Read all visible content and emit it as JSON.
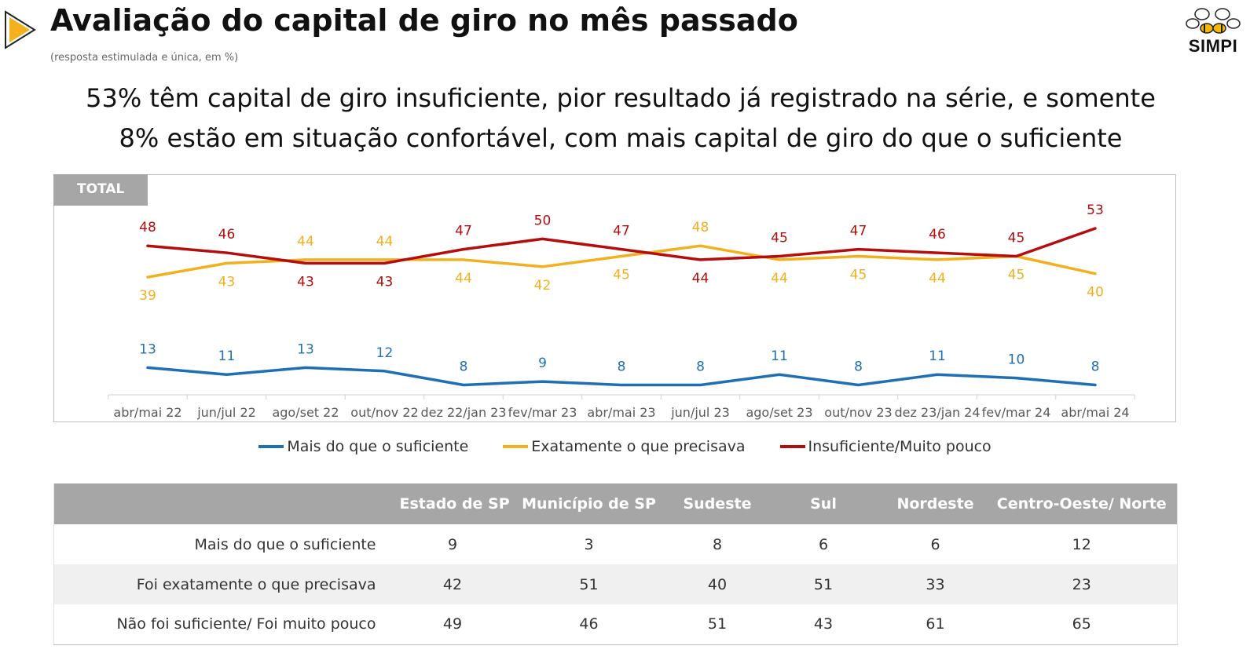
{
  "header": {
    "title": "Avaliação do capital de giro no mês passado",
    "subtitle": "(resposta estimulada e única, em %)",
    "logo_text": "SIMPI"
  },
  "headline": {
    "line1": "53% têm capital de giro insuficiente, pior resultado já registrado na série, e somente",
    "line2": "8% estão em situação confortável, com mais capital de giro do que o suficiente"
  },
  "chart_tag": "TOTAL",
  "chart_data": {
    "type": "line",
    "categories": [
      "abr/mai 22",
      "jun/jul 22",
      "ago/set 22",
      "out/nov 22",
      "dez 22/jan 23",
      "fev/mar 23",
      "abr/mai 23",
      "jun/jul 23",
      "ago/set 23",
      "out/nov 23",
      "dez 23/jan 24",
      "fev/mar 24",
      "abr/mai 24"
    ],
    "series": [
      {
        "name": "Mais do que o suficiente",
        "color": "#1f6fb5",
        "values": [
          13,
          11,
          13,
          12,
          8,
          9,
          8,
          8,
          11,
          8,
          11,
          10,
          8
        ]
      },
      {
        "name": "Exatamente o que precisava",
        "color": "#f2b01e",
        "values": [
          39,
          43,
          44,
          44,
          44,
          42,
          45,
          48,
          44,
          45,
          44,
          45,
          40
        ]
      },
      {
        "name": "Insuficiente/Muito pouco",
        "color": "#b30d0d",
        "values": [
          48,
          46,
          43,
          43,
          47,
          50,
          47,
          44,
          45,
          47,
          46,
          45,
          53
        ]
      }
    ],
    "ylim": [
      0,
      60
    ],
    "grid": false,
    "legend": "bottom"
  },
  "table": {
    "columns": [
      "",
      "Estado de SP",
      "Município de SP",
      "Sudeste",
      "Sul",
      "Nordeste",
      "Centro-Oeste/ Norte"
    ],
    "rows": [
      {
        "label": "Mais do que o suficiente",
        "values": [
          "9",
          "3",
          "8",
          "6",
          "6",
          "12"
        ]
      },
      {
        "label": "Foi exatamente o que precisava",
        "values": [
          "42",
          "51",
          "40",
          "51",
          "33",
          "23"
        ]
      },
      {
        "label": "Não foi suficiente/ Foi muito pouco",
        "values": [
          "49",
          "46",
          "51",
          "43",
          "61",
          "65"
        ]
      }
    ]
  }
}
